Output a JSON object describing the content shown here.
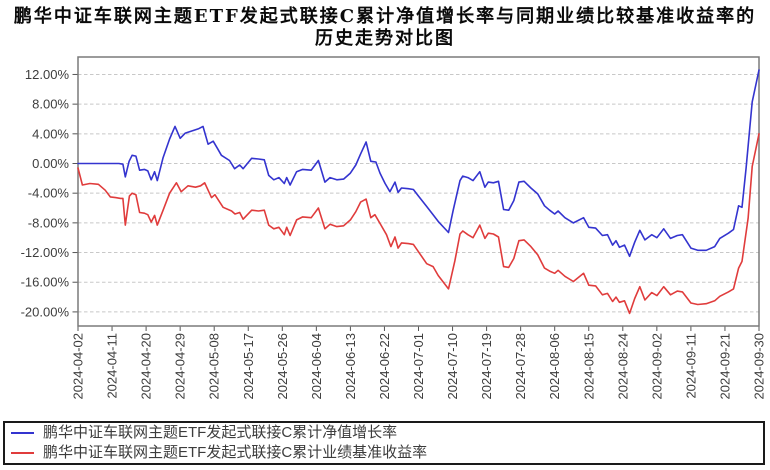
{
  "title": {
    "line1": "鹏华中证车联网主题ETF发起式联接C累计净值增长率与同期业绩比较基准收益率的",
    "line2": "历史走势对比图"
  },
  "chart_data": {
    "type": "line",
    "title": "鹏华中证车联网主题ETF发起式联接C累计净值增长率与同期业绩比较基准收益率的历史走势对比图",
    "x_labels": [
      "2024-04-02",
      "2024-04-11",
      "2024-04-20",
      "2024-04-29",
      "2024-05-08",
      "2024-05-17",
      "2024-05-26",
      "2024-06-04",
      "2024-06-13",
      "2024-06-22",
      "2024-07-01",
      "2024-07-10",
      "2024-07-19",
      "2024-07-28",
      "2024-08-06",
      "2024-08-15",
      "2024-08-24",
      "2024-09-02",
      "2024-09-11",
      "2024-09-21",
      "2024-09-30"
    ],
    "x_unit": "tick index 0-20, maps to x_labels dates",
    "y_ticks": [
      "12.00%",
      "8.00%",
      "4.00%",
      "0.00%",
      "-4.00%",
      "-8.00%",
      "-12.00%",
      "-16.00%",
      "-20.00%"
    ],
    "y_tick_values": [
      12,
      8,
      4,
      0,
      -4,
      -8,
      -12,
      -16,
      -20
    ],
    "ylim": [
      -21.9,
      14.4
    ],
    "grid": "horizontal dashed",
    "legend_position": "bottom",
    "series": [
      {
        "name": "鹏华中证车联网主题ETF发起式联接C累计净值增长率",
        "color": "#3434cf",
        "points": [
          [
            0,
            0
          ],
          [
            0.5,
            0
          ],
          [
            0.9,
            0
          ],
          [
            1.2,
            0
          ],
          [
            1.32,
            -0.1
          ],
          [
            1.39,
            -1.8
          ],
          [
            1.5,
            0.3
          ],
          [
            1.59,
            1.1
          ],
          [
            1.7,
            1
          ],
          [
            1.81,
            -0.9
          ],
          [
            1.95,
            -0.8
          ],
          [
            2.05,
            -1
          ],
          [
            2.15,
            -2.2
          ],
          [
            2.25,
            -1.1
          ],
          [
            2.33,
            -2.3
          ],
          [
            2.5,
            0.8
          ],
          [
            2.69,
            3.3
          ],
          [
            2.85,
            5
          ],
          [
            3,
            3.4
          ],
          [
            3.15,
            4.1
          ],
          [
            3.35,
            4.4
          ],
          [
            3.55,
            4.7
          ],
          [
            3.67,
            5
          ],
          [
            3.82,
            2.6
          ],
          [
            3.97,
            3
          ],
          [
            4.1,
            2
          ],
          [
            4.21,
            1.1
          ],
          [
            4.45,
            0.4
          ],
          [
            4.6,
            -0.7
          ],
          [
            4.75,
            -0.2
          ],
          [
            4.85,
            -0.7
          ],
          [
            5.1,
            0.7
          ],
          [
            5.3,
            0.6
          ],
          [
            5.47,
            0.5
          ],
          [
            5.6,
            -1.6
          ],
          [
            5.75,
            -2.2
          ],
          [
            5.9,
            -1.9
          ],
          [
            6.06,
            -2.7
          ],
          [
            6.13,
            -1.9
          ],
          [
            6.23,
            -2.9
          ],
          [
            6.42,
            -1.1
          ],
          [
            6.6,
            -0.8
          ],
          [
            6.85,
            -0.9
          ],
          [
            7.06,
            0.4
          ],
          [
            7.25,
            -2.5
          ],
          [
            7.4,
            -1.9
          ],
          [
            7.6,
            -2.2
          ],
          [
            7.8,
            -2.1
          ],
          [
            8,
            -1.3
          ],
          [
            8.16,
            -0.2
          ],
          [
            8.3,
            1.3
          ],
          [
            8.46,
            2.9
          ],
          [
            8.6,
            0.3
          ],
          [
            8.75,
            0.2
          ],
          [
            8.87,
            -1.3
          ],
          [
            9.02,
            -2.7
          ],
          [
            9.16,
            -3.8
          ],
          [
            9.31,
            -2.5
          ],
          [
            9.4,
            -3.9
          ],
          [
            9.5,
            -3.3
          ],
          [
            9.7,
            -3.4
          ],
          [
            9.85,
            -3.5
          ],
          [
            10,
            -4.4
          ],
          [
            10.24,
            -5.8
          ],
          [
            10.43,
            -6.9
          ],
          [
            10.58,
            -7.8
          ],
          [
            10.88,
            -9.3
          ],
          [
            11.02,
            -6.3
          ],
          [
            11.22,
            -2.3
          ],
          [
            11.3,
            -1.7
          ],
          [
            11.45,
            -1.9
          ],
          [
            11.6,
            -2.3
          ],
          [
            11.8,
            -1.1
          ],
          [
            11.95,
            -3.2
          ],
          [
            12.05,
            -2.5
          ],
          [
            12.2,
            -2.6
          ],
          [
            12.35,
            -2.4
          ],
          [
            12.5,
            -6.2
          ],
          [
            12.65,
            -6.3
          ],
          [
            12.8,
            -5
          ],
          [
            12.95,
            -2.5
          ],
          [
            13.1,
            -2.4
          ],
          [
            13.3,
            -3.3
          ],
          [
            13.5,
            -4.1
          ],
          [
            13.7,
            -5.7
          ],
          [
            13.85,
            -6.3
          ],
          [
            14,
            -6.8
          ],
          [
            14.1,
            -6.4
          ],
          [
            14.3,
            -7.3
          ],
          [
            14.55,
            -8
          ],
          [
            14.85,
            -7.3
          ],
          [
            15,
            -8.6
          ],
          [
            15.2,
            -8.7
          ],
          [
            15.4,
            -9.7
          ],
          [
            15.55,
            -9.6
          ],
          [
            15.7,
            -11
          ],
          [
            15.8,
            -10.4
          ],
          [
            15.9,
            -11.3
          ],
          [
            16.05,
            -11
          ],
          [
            16.2,
            -12.5
          ],
          [
            16.35,
            -10.6
          ],
          [
            16.5,
            -9
          ],
          [
            16.65,
            -10.3
          ],
          [
            16.85,
            -9.6
          ],
          [
            17,
            -10
          ],
          [
            17.2,
            -8.8
          ],
          [
            17.4,
            -10.1
          ],
          [
            17.6,
            -9.7
          ],
          [
            17.75,
            -9.6
          ],
          [
            18,
            -11.4
          ],
          [
            18.2,
            -11.7
          ],
          [
            18.45,
            -11.7
          ],
          [
            18.7,
            -11.2
          ],
          [
            18.85,
            -10.1
          ],
          [
            19.1,
            -9.4
          ],
          [
            19.25,
            -8.9
          ],
          [
            19.4,
            -5.7
          ],
          [
            19.5,
            -5.9
          ],
          [
            19.62,
            -0.6
          ],
          [
            19.8,
            8.3
          ],
          [
            20,
            12.6
          ]
        ]
      },
      {
        "name": "鹏华中证车联网主题ETF发起式联接C累计业绩基准收益率",
        "color": "#e03c3c",
        "points": [
          [
            0,
            -0.6
          ],
          [
            0.13,
            -2.9
          ],
          [
            0.35,
            -2.7
          ],
          [
            0.6,
            -2.8
          ],
          [
            0.8,
            -3.6
          ],
          [
            0.95,
            -4.5
          ],
          [
            1.1,
            -4.6
          ],
          [
            1.25,
            -4.7
          ],
          [
            1.32,
            -4.7
          ],
          [
            1.39,
            -8.3
          ],
          [
            1.51,
            -4.4
          ],
          [
            1.59,
            -4
          ],
          [
            1.7,
            -4.2
          ],
          [
            1.81,
            -6.6
          ],
          [
            1.95,
            -6.7
          ],
          [
            2.05,
            -6.9
          ],
          [
            2.15,
            -7.9
          ],
          [
            2.25,
            -7
          ],
          [
            2.33,
            -8.3
          ],
          [
            2.5,
            -6.3
          ],
          [
            2.69,
            -4
          ],
          [
            2.89,
            -2.6
          ],
          [
            3.03,
            -3.8
          ],
          [
            3.23,
            -3
          ],
          [
            3.45,
            -3.2
          ],
          [
            3.6,
            -3
          ],
          [
            3.72,
            -2.6
          ],
          [
            3.92,
            -4.6
          ],
          [
            4.02,
            -4.2
          ],
          [
            4.26,
            -5.9
          ],
          [
            4.51,
            -6.4
          ],
          [
            4.61,
            -6.8
          ],
          [
            4.75,
            -6.6
          ],
          [
            4.85,
            -7.5
          ],
          [
            5.1,
            -6.3
          ],
          [
            5.3,
            -6.4
          ],
          [
            5.47,
            -6.3
          ],
          [
            5.6,
            -8.3
          ],
          [
            5.75,
            -8.8
          ],
          [
            5.9,
            -8.6
          ],
          [
            6.06,
            -9.6
          ],
          [
            6.13,
            -8.6
          ],
          [
            6.23,
            -9.7
          ],
          [
            6.42,
            -7.6
          ],
          [
            6.6,
            -7.2
          ],
          [
            6.85,
            -7.3
          ],
          [
            7.06,
            -6
          ],
          [
            7.25,
            -8.8
          ],
          [
            7.4,
            -8.2
          ],
          [
            7.6,
            -8.5
          ],
          [
            7.8,
            -8.4
          ],
          [
            8,
            -7.6
          ],
          [
            8.16,
            -6.5
          ],
          [
            8.3,
            -5.2
          ],
          [
            8.46,
            -4.8
          ],
          [
            8.6,
            -7.3
          ],
          [
            8.72,
            -6.9
          ],
          [
            8.9,
            -8.3
          ],
          [
            9.06,
            -9.6
          ],
          [
            9.19,
            -11.2
          ],
          [
            9.31,
            -9.9
          ],
          [
            9.4,
            -11.4
          ],
          [
            9.5,
            -10.7
          ],
          [
            9.7,
            -10.8
          ],
          [
            9.85,
            -10.9
          ],
          [
            10,
            -11.9
          ],
          [
            10.24,
            -13.5
          ],
          [
            10.43,
            -13.9
          ],
          [
            10.58,
            -15.1
          ],
          [
            10.88,
            -16.9
          ],
          [
            11.07,
            -13.1
          ],
          [
            11.22,
            -9.5
          ],
          [
            11.3,
            -9.1
          ],
          [
            11.45,
            -9.6
          ],
          [
            11.6,
            -10
          ],
          [
            11.8,
            -8.3
          ],
          [
            11.95,
            -10.1
          ],
          [
            12.05,
            -9.4
          ],
          [
            12.2,
            -9.5
          ],
          [
            12.35,
            -9.9
          ],
          [
            12.5,
            -13.9
          ],
          [
            12.65,
            -14
          ],
          [
            12.8,
            -12.8
          ],
          [
            12.95,
            -10.4
          ],
          [
            13.1,
            -10.3
          ],
          [
            13.3,
            -11.2
          ],
          [
            13.5,
            -12.3
          ],
          [
            13.7,
            -14.1
          ],
          [
            13.85,
            -14.5
          ],
          [
            14,
            -14.8
          ],
          [
            14.1,
            -14.4
          ],
          [
            14.3,
            -15.2
          ],
          [
            14.55,
            -15.9
          ],
          [
            14.85,
            -14.8
          ],
          [
            15,
            -16.4
          ],
          [
            15.2,
            -16.5
          ],
          [
            15.4,
            -17.7
          ],
          [
            15.55,
            -17.5
          ],
          [
            15.7,
            -18.6
          ],
          [
            15.8,
            -18
          ],
          [
            15.9,
            -18.7
          ],
          [
            16.05,
            -18.5
          ],
          [
            16.2,
            -20.2
          ],
          [
            16.35,
            -18.2
          ],
          [
            16.5,
            -16.6
          ],
          [
            16.65,
            -18.4
          ],
          [
            16.85,
            -17.4
          ],
          [
            17,
            -17.8
          ],
          [
            17.2,
            -16.6
          ],
          [
            17.4,
            -17.7
          ],
          [
            17.6,
            -17.2
          ],
          [
            17.75,
            -17.3
          ],
          [
            18,
            -18.8
          ],
          [
            18.2,
            -19
          ],
          [
            18.45,
            -18.9
          ],
          [
            18.7,
            -18.5
          ],
          [
            18.85,
            -17.9
          ],
          [
            19.1,
            -17.3
          ],
          [
            19.25,
            -16.9
          ],
          [
            19.4,
            -14.1
          ],
          [
            19.5,
            -13.2
          ],
          [
            19.68,
            -7.4
          ],
          [
            19.8,
            -0.4
          ],
          [
            20,
            4
          ]
        ]
      }
    ]
  },
  "colors": {
    "nav_growth_line": "#3434cf",
    "benchmark_line": "#e03c3c",
    "grid_line": "#c8c8c8",
    "plot_border": "#7a7a7a",
    "legend_border": "#1a1a1a"
  }
}
